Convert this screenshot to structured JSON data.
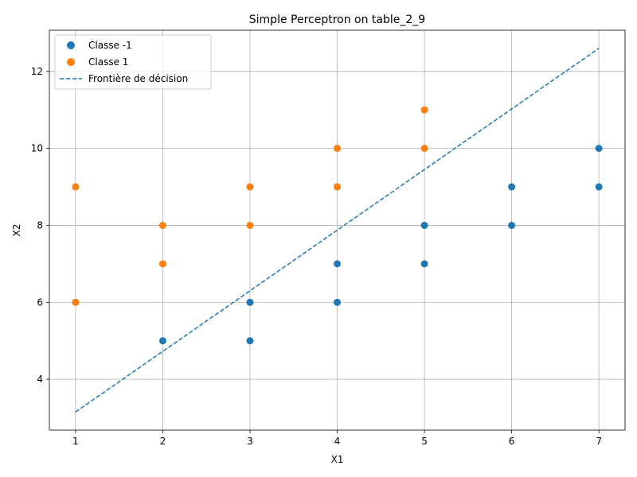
{
  "chart_data": {
    "type": "scatter",
    "title": "Simple Perceptron on table_2_9",
    "xlabel": "X1",
    "ylabel": "X2",
    "xlim": [
      0.7,
      7.3
    ],
    "ylim": [
      2.68,
      13.07
    ],
    "xticks": [
      1,
      2,
      3,
      4,
      5,
      6,
      7
    ],
    "yticks": [
      4,
      6,
      8,
      10,
      12
    ],
    "grid": true,
    "legend_position": "upper-left",
    "series": [
      {
        "name": "Classe -1",
        "color": "#1f77b4",
        "points": [
          [
            2,
            5
          ],
          [
            3,
            5
          ],
          [
            3,
            6
          ],
          [
            4,
            6
          ],
          [
            4,
            7
          ],
          [
            5,
            7
          ],
          [
            5,
            8
          ],
          [
            6,
            8
          ],
          [
            6,
            9
          ],
          [
            7,
            9
          ],
          [
            7,
            10
          ]
        ]
      },
      {
        "name": "Classe 1",
        "color": "#ff7f0e",
        "points": [
          [
            1,
            6
          ],
          [
            1,
            9
          ],
          [
            2,
            7
          ],
          [
            2,
            8
          ],
          [
            3,
            8
          ],
          [
            3,
            9
          ],
          [
            4,
            9
          ],
          [
            4,
            10
          ],
          [
            5,
            10
          ],
          [
            5,
            11
          ]
        ]
      }
    ],
    "decision_boundary": {
      "name": "Frontière de décision",
      "color": "#1f77b4",
      "style": "dashed",
      "x": [
        1,
        7
      ],
      "y": [
        3.15,
        12.6
      ]
    }
  }
}
